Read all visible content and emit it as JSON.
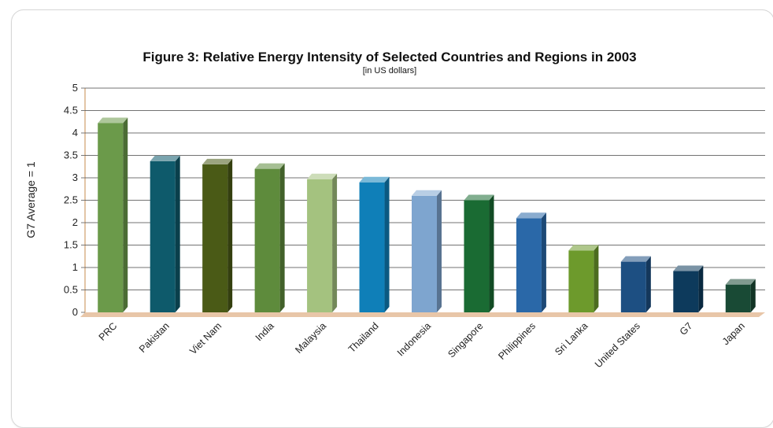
{
  "chart_data": {
    "type": "bar",
    "title": "Figure 3: Relative Energy Intensity of Selected Countries and Regions in 2003",
    "subtitle": "[in US dollars]",
    "ylabel": "G7 Average = 1",
    "xlabel": "",
    "ylim": [
      0,
      5
    ],
    "yticks": [
      "0",
      "0.5",
      "1",
      "1.5",
      "2",
      "2.5",
      "3",
      "3.5",
      "4",
      "4.5",
      "5"
    ],
    "grid": true,
    "legend": "none",
    "categories": [
      "PRC",
      "Pakistan",
      "Viet Nam",
      "India",
      "Malaysia",
      "Thailand",
      "Indonesia",
      "Singapore",
      "Philippines",
      "Sri Lanka",
      "United States",
      "G7",
      "Japan"
    ],
    "values": [
      4.22,
      3.37,
      3.3,
      3.2,
      2.97,
      2.9,
      2.6,
      2.5,
      2.1,
      1.38,
      1.13,
      0.92,
      0.62
    ],
    "colors": [
      "#6b9a4a",
      "#0e5a6b",
      "#4a5a16",
      "#5e8b3c",
      "#a4c27f",
      "#0f7fb8",
      "#7ea5cf",
      "#1a6b33",
      "#2a68a8",
      "#6d9a2c",
      "#1d4f82",
      "#0d3a5c",
      "#194a35"
    ],
    "floor_color": "#e8c6a8"
  }
}
